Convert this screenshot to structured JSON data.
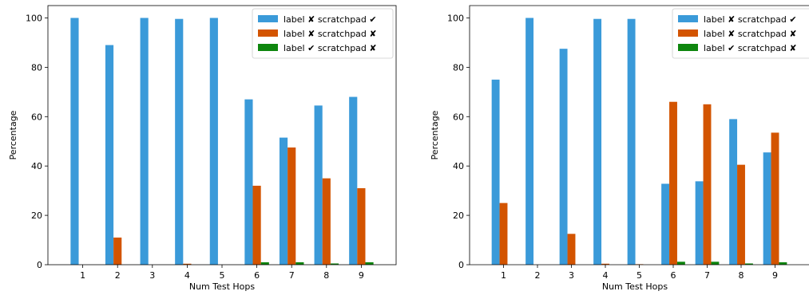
{
  "colors": {
    "label_x_scratch_check": "#3a9ad9",
    "label_x_scratch_x": "#d35400",
    "label_check_scratch_x": "#0e860e"
  },
  "chart_data": [
    {
      "type": "bar",
      "xlabel": "Num Test Hops",
      "ylabel": "Percentage",
      "ylim": [
        0,
        105
      ],
      "yticks": [
        0,
        20,
        40,
        60,
        80,
        100
      ],
      "categories": [
        "1",
        "2",
        "3",
        "4",
        "5",
        "6",
        "7",
        "8",
        "9"
      ],
      "legend_position": "top-right",
      "series": [
        {
          "name": "label ✘ scratchpad ✔",
          "color": "#3a9ad9",
          "values": [
            100,
            89,
            100,
            99.6,
            100,
            67,
            51.5,
            64.5,
            68
          ]
        },
        {
          "name": "label ✘ scratchpad ✘",
          "color": "#d35400",
          "values": [
            0,
            11,
            0,
            0.4,
            0,
            32,
            47.5,
            35,
            31
          ]
        },
        {
          "name": "label ✔ scratchpad ✘",
          "color": "#0e860e",
          "values": [
            0,
            0,
            0,
            0,
            0,
            1,
            1,
            0.5,
            1
          ]
        }
      ]
    },
    {
      "type": "bar",
      "xlabel": "Num Test Hops",
      "ylabel": "Percentage",
      "ylim": [
        0,
        105
      ],
      "yticks": [
        0,
        20,
        40,
        60,
        80,
        100
      ],
      "categories": [
        "1",
        "2",
        "3",
        "4",
        "5",
        "6",
        "7",
        "8",
        "9"
      ],
      "legend_position": "top-right",
      "series": [
        {
          "name": "label ✘ scratchpad ✔",
          "color": "#3a9ad9",
          "values": [
            75,
            100,
            87.5,
            99.6,
            99.6,
            32.8,
            33.8,
            59,
            45.5
          ]
        },
        {
          "name": "label ✘ scratchpad ✘",
          "color": "#d35400",
          "values": [
            25,
            0,
            12.5,
            0.4,
            0.2,
            66,
            65,
            40.5,
            53.5
          ]
        },
        {
          "name": "label ✔ scratchpad ✘",
          "color": "#0e860e",
          "values": [
            0,
            0,
            0,
            0,
            0,
            1.2,
            1.2,
            0.5,
            1
          ]
        }
      ]
    }
  ]
}
